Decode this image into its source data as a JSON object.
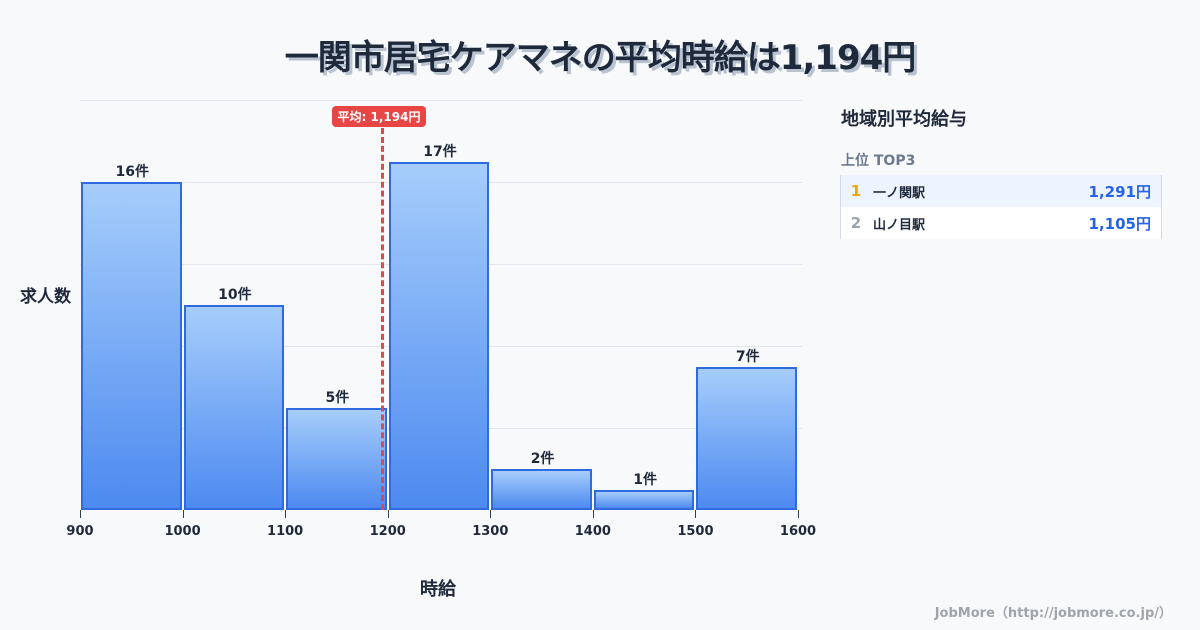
{
  "title": "一関市居宅ケアマネの平均時給は1,194円",
  "chart_data": {
    "type": "bar",
    "title": "一関市居宅ケアマネの平均時給は1,194円",
    "xlabel": "時給",
    "ylabel": "求人数",
    "categories": [
      "900-1000",
      "1000-1100",
      "1100-1200",
      "1200-1300",
      "1300-1400",
      "1400-1500",
      "1500-1600"
    ],
    "bin_edges": [
      900,
      1000,
      1100,
      1200,
      1300,
      1400,
      1500,
      1600
    ],
    "values": [
      16,
      10,
      5,
      17,
      2,
      1,
      7
    ],
    "value_labels": [
      "16件",
      "10件",
      "5件",
      "17件",
      "2件",
      "1件",
      "7件"
    ],
    "x_ticks": [
      "900",
      "1000",
      "1100",
      "1200",
      "1300",
      "1400",
      "1500",
      "1600"
    ],
    "ylim": [
      0,
      20
    ],
    "grid": true,
    "average_line": {
      "value": 1194,
      "label": "平均: 1,194円",
      "color": "#e84545"
    },
    "bar_color": "#4d8af0",
    "bar_border_color": "#2f6ae0"
  },
  "sidebar": {
    "title": "地域別平均給与",
    "subtitle": "上位 TOP3",
    "ranks": [
      {
        "rank": "1",
        "name": "一ノ関駅",
        "value": "1,291円",
        "rank_color": "#e5a800"
      },
      {
        "rank": "2",
        "name": "山ノ目駅",
        "value": "1,105円",
        "rank_color": "#9aa3b0"
      }
    ]
  },
  "footer": "JobMore（http://jobmore.co.jp/）"
}
